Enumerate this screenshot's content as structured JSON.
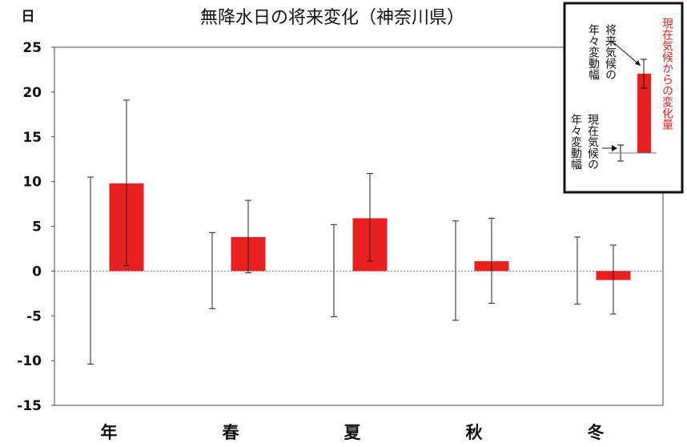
{
  "chart_data": {
    "type": "bar",
    "title": "無降水日の将来変化（神奈川県）",
    "ylabel": "日",
    "ylim": [
      -15,
      25
    ],
    "yticks": [
      25,
      20,
      15,
      10,
      5,
      0,
      -5,
      -10,
      -15
    ],
    "categories": [
      "年",
      "春",
      "夏",
      "秋",
      "冬"
    ],
    "values": [
      9.8,
      3.8,
      5.9,
      1.1,
      -1.0
    ],
    "future_error": [
      [
        0.6,
        19.1
      ],
      [
        -0.2,
        7.9
      ],
      [
        1.1,
        10.9
      ],
      [
        -3.6,
        5.9
      ],
      [
        -4.8,
        2.9
      ]
    ],
    "present_error": [
      [
        -10.4,
        10.5
      ],
      [
        -4.2,
        4.3
      ],
      [
        -5.1,
        5.2
      ],
      [
        -5.5,
        5.6
      ],
      [
        -3.7,
        3.8
      ]
    ],
    "bar_color": "#e8201f",
    "zero_line": "dotted",
    "grid": false
  },
  "legend": {
    "future_label": [
      "将来気候の",
      "年々変動幅"
    ],
    "present_label": [
      "現在気候の",
      "年々変動幅"
    ],
    "change_label": "現在気候からの変化量",
    "change_color": "#e8201f"
  }
}
